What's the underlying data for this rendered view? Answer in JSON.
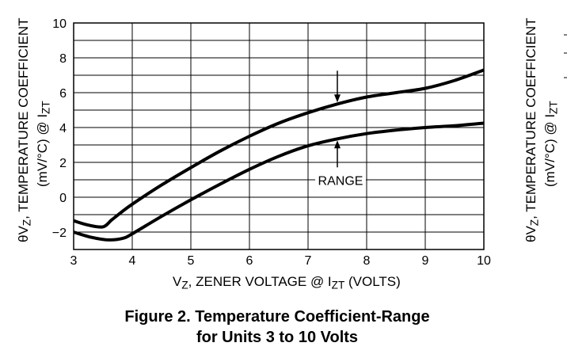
{
  "chart_data": {
    "type": "line",
    "xlabel_main": "V",
    "xlabel_sub1": "Z",
    "xlabel_mid": ", ZENER VOLTAGE @ I",
    "xlabel_sub2": "ZT",
    "xlabel_end": " (VOLTS)",
    "ylabel_line1_main": "θV",
    "ylabel_line1_sub": "Z",
    "ylabel_line1_end": ", TEMPERATURE COEFFICIENT",
    "ylabel_line2_main": "(mV/°C) @ I",
    "ylabel_line2_sub": "ZT",
    "xlim": [
      3,
      10
    ],
    "ylim": [
      -3,
      10
    ],
    "xticks": [
      3,
      4,
      5,
      6,
      7,
      8,
      9,
      10
    ],
    "yticks": [
      10,
      8,
      6,
      4,
      2,
      0,
      -2
    ],
    "ytick_labels": [
      "10",
      "8",
      "6",
      "4",
      "2",
      "0",
      "−2"
    ],
    "grid": true,
    "series": [
      {
        "values": [
          {
            "x": 3.0,
            "y": -1.35
          },
          {
            "x": 3.25,
            "y": -1.6
          },
          {
            "x": 3.5,
            "y": -1.7
          },
          {
            "x": 3.65,
            "y": -1.3
          },
          {
            "x": 3.8,
            "y": -0.9
          },
          {
            "x": 4.0,
            "y": -0.4
          },
          {
            "x": 4.5,
            "y": 0.7
          },
          {
            "x": 5.0,
            "y": 1.7
          },
          {
            "x": 5.5,
            "y": 2.65
          },
          {
            "x": 6.0,
            "y": 3.5
          },
          {
            "x": 6.5,
            "y": 4.25
          },
          {
            "x": 7.0,
            "y": 4.85
          },
          {
            "x": 7.5,
            "y": 5.35
          },
          {
            "x": 8.0,
            "y": 5.75
          },
          {
            "x": 8.5,
            "y": 6.0
          },
          {
            "x": 9.0,
            "y": 6.25
          },
          {
            "x": 9.5,
            "y": 6.7
          },
          {
            "x": 10.0,
            "y": 7.3
          }
        ]
      },
      {
        "values": [
          {
            "x": 3.0,
            "y": -2.0
          },
          {
            "x": 3.3,
            "y": -2.3
          },
          {
            "x": 3.6,
            "y": -2.45
          },
          {
            "x": 3.85,
            "y": -2.35
          },
          {
            "x": 4.0,
            "y": -2.1
          },
          {
            "x": 4.5,
            "y": -1.1
          },
          {
            "x": 5.0,
            "y": -0.15
          },
          {
            "x": 5.5,
            "y": 0.75
          },
          {
            "x": 6.0,
            "y": 1.6
          },
          {
            "x": 6.5,
            "y": 2.35
          },
          {
            "x": 7.0,
            "y": 2.95
          },
          {
            "x": 7.5,
            "y": 3.35
          },
          {
            "x": 8.0,
            "y": 3.65
          },
          {
            "x": 8.5,
            "y": 3.85
          },
          {
            "x": 9.0,
            "y": 4.0
          },
          {
            "x": 9.5,
            "y": 4.1
          },
          {
            "x": 10.0,
            "y": 4.25
          }
        ]
      }
    ],
    "annotation": {
      "text": "RANGE",
      "x": 7.5
    },
    "caption_line1": "Figure 2. Temperature Coefficient-Range",
    "caption_line2": "for Units 3 to 10 Volts"
  }
}
